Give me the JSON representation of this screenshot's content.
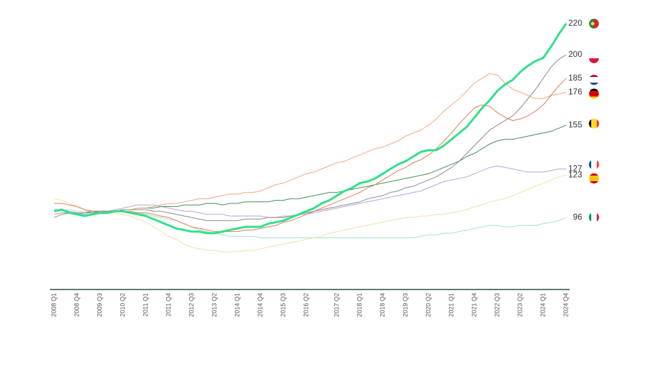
{
  "chart_data": {
    "type": "line",
    "categories": [
      "2008 Q1",
      null,
      null,
      "2008 Q4",
      null,
      null,
      "2009 Q3",
      null,
      null,
      "2010 Q2",
      null,
      null,
      "2011 Q1",
      null,
      null,
      "2011 Q4",
      null,
      null,
      "2012 Q3",
      null,
      null,
      "2013 Q2",
      null,
      null,
      "2014 Q1",
      null,
      null,
      "2014 Q4",
      null,
      null,
      "2015 Q3",
      null,
      null,
      "2016 Q2",
      null,
      null,
      null,
      "2017 Q2",
      null,
      null,
      "2018 Q1",
      null,
      null,
      "2018 Q4",
      null,
      null,
      "2019 Q3",
      null,
      null,
      "2020 Q2",
      null,
      null,
      "2021 Q1",
      null,
      null,
      "2021 Q4",
      null,
      null,
      "2022 Q3",
      null,
      null,
      "2023 Q2",
      null,
      null,
      "2024 Q1",
      null,
      null,
      "2024 Q4"
    ],
    "ylim": [
      50,
      235
    ],
    "series": [
      {
        "color": "#9fe3c4",
        "width": 1,
        "values": [
          100,
          101,
          101,
          100,
          100,
          100,
          100,
          100,
          100,
          100,
          99,
          99,
          98,
          97,
          96,
          95,
          94,
          92,
          90,
          88,
          87,
          86,
          85,
          84,
          84,
          84,
          84,
          83,
          83,
          83,
          83,
          83,
          83,
          83,
          83,
          83,
          83,
          83,
          83,
          83,
          83,
          83,
          83,
          83,
          83,
          83,
          83,
          83,
          84,
          85,
          85,
          86,
          86,
          87,
          88,
          89,
          90,
          91,
          91,
          90,
          90,
          91,
          91,
          91,
          92,
          93,
          94,
          96
        ]
      },
      {
        "color": "#f1e0a8",
        "width": 1,
        "values": [
          108,
          107,
          105,
          103,
          101,
          100,
          99,
          99,
          99,
          98,
          97,
          95,
          93,
          90,
          87,
          84,
          82,
          79,
          77,
          76,
          75,
          75,
          74,
          74,
          74,
          75,
          75,
          76,
          77,
          78,
          79,
          80,
          81,
          82,
          83,
          84,
          86,
          87,
          88,
          89,
          90,
          91,
          92,
          93,
          94,
          95,
          96,
          96,
          97,
          97,
          98,
          98,
          99,
          100,
          101,
          103,
          104,
          106,
          107,
          108,
          110,
          112,
          114,
          116,
          118,
          120,
          122,
          123
        ]
      },
      {
        "color": "#b2a4dc",
        "width": 1,
        "values": [
          101,
          101,
          100,
          99,
          98,
          98,
          99,
          100,
          101,
          102,
          103,
          104,
          104,
          104,
          103,
          102,
          101,
          100,
          100,
          99,
          98,
          98,
          98,
          97,
          97,
          97,
          97,
          97,
          96,
          96,
          97,
          97,
          98,
          98,
          99,
          100,
          101,
          102,
          103,
          104,
          105,
          106,
          107,
          108,
          109,
          110,
          111,
          112,
          113,
          115,
          117,
          119,
          120,
          121,
          122,
          124,
          126,
          128,
          129,
          128,
          127,
          126,
          125,
          125,
          125,
          126,
          127,
          127
        ]
      },
      {
        "color": "#3f8f55",
        "width": 1,
        "values": [
          98,
          99,
          99,
          99,
          99,
          99,
          100,
          100,
          100,
          101,
          101,
          102,
          102,
          102,
          103,
          103,
          103,
          104,
          104,
          104,
          105,
          105,
          104,
          105,
          105,
          106,
          106,
          106,
          106,
          107,
          107,
          108,
          108,
          109,
          110,
          111,
          112,
          112,
          113,
          114,
          115,
          116,
          117,
          118,
          119,
          120,
          121,
          122,
          123,
          124,
          126,
          128,
          130,
          132,
          135,
          137,
          140,
          143,
          145,
          146,
          146,
          147,
          148,
          149,
          150,
          151,
          153,
          155
        ]
      },
      {
        "color": "#f2a77c",
        "width": 1,
        "values": [
          98,
          99,
          99,
          99,
          99,
          100,
          100,
          100,
          100,
          101,
          101,
          102,
          102,
          103,
          104,
          105,
          105,
          106,
          107,
          108,
          108,
          109,
          110,
          111,
          111,
          112,
          112,
          113,
          115,
          117,
          118,
          120,
          122,
          124,
          125,
          127,
          129,
          131,
          132,
          134,
          136,
          138,
          140,
          141,
          143,
          145,
          148,
          150,
          152,
          155,
          159,
          164,
          168,
          172,
          177,
          182,
          185,
          188,
          187,
          182,
          178,
          176,
          174,
          172,
          172,
          174,
          175,
          176
        ]
      },
      {
        "color": "#e07a55",
        "width": 1,
        "values": [
          105,
          105,
          104,
          103,
          101,
          100,
          100,
          100,
          100,
          100,
          100,
          99,
          99,
          98,
          97,
          96,
          94,
          92,
          90,
          89,
          88,
          87,
          87,
          87,
          87,
          88,
          88,
          89,
          90,
          91,
          93,
          94,
          96,
          98,
          100,
          102,
          104,
          106,
          108,
          110,
          112,
          115,
          117,
          120,
          123,
          126,
          128,
          131,
          133,
          136,
          140,
          145,
          150,
          156,
          161,
          166,
          168,
          167,
          163,
          160,
          158,
          159,
          161,
          164,
          168,
          174,
          180,
          185
        ]
      },
      {
        "color": "#8a8a8a",
        "width": 1,
        "values": [
          96,
          98,
          99,
          99,
          99,
          100,
          100,
          100,
          100,
          101,
          101,
          101,
          101,
          100,
          100,
          99,
          98,
          97,
          96,
          95,
          94,
          94,
          94,
          94,
          94,
          95,
          95,
          95,
          96,
          96,
          96,
          97,
          98,
          99,
          100,
          101,
          102,
          103,
          104,
          105,
          106,
          108,
          109,
          110,
          112,
          113,
          115,
          116,
          118,
          120,
          122,
          125,
          128,
          132,
          137,
          142,
          147,
          152,
          155,
          158,
          161,
          166,
          172,
          178,
          185,
          192,
          197,
          200
        ]
      },
      {
        "color": "#2ee08a",
        "width": 3,
        "values": [
          100,
          101,
          99,
          98,
          97,
          98,
          99,
          99,
          100,
          100,
          99,
          98,
          97,
          95,
          93,
          91,
          89,
          88,
          87,
          87,
          86,
          86,
          87,
          88,
          89,
          90,
          90,
          90,
          92,
          93,
          94,
          96,
          98,
          100,
          102,
          105,
          107,
          110,
          113,
          115,
          118,
          119,
          121,
          124,
          127,
          130,
          132,
          135,
          138,
          139,
          139,
          142,
          146,
          150,
          154,
          160,
          166,
          171,
          177,
          181,
          184,
          189,
          193,
          196,
          198,
          205,
          213,
          220
        ]
      }
    ]
  }
}
